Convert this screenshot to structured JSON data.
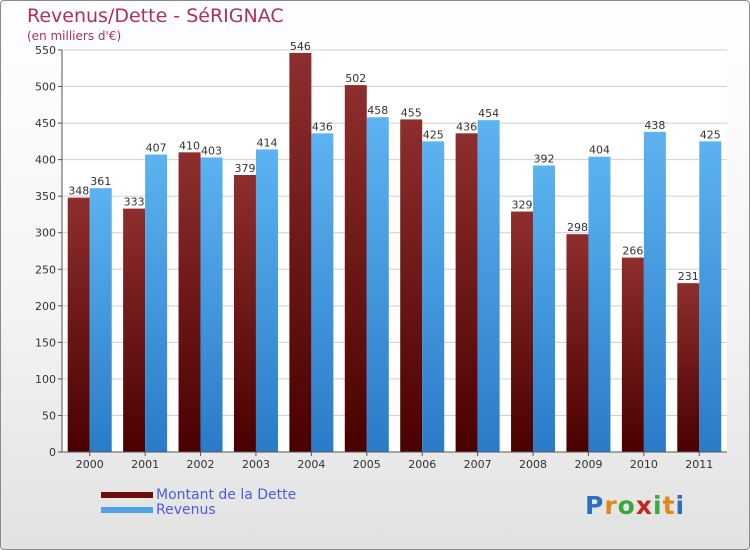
{
  "title": "Revenus/Dette - SéRIGNAC",
  "subtitle": "(en milliers d'€)",
  "colors": {
    "dette": "#7a1c1c",
    "revenus": "#4ea3e6"
  },
  "chart_data": {
    "type": "bar",
    "title": "Revenus/Dette - SéRIGNAC",
    "ylabel": "(en milliers d'€)",
    "categories": [
      "2000",
      "2001",
      "2002",
      "2003",
      "2004",
      "2005",
      "2006",
      "2007",
      "2008",
      "2009",
      "2010",
      "2011"
    ],
    "series": [
      {
        "name": "Montant de la Dette",
        "values": [
          348,
          333,
          410,
          379,
          546,
          502,
          455,
          436,
          329,
          298,
          266,
          231
        ]
      },
      {
        "name": "Revenus",
        "values": [
          361,
          407,
          403,
          414,
          436,
          458,
          425,
          454,
          392,
          404,
          438,
          425
        ]
      }
    ],
    "ylim": [
      0,
      550
    ],
    "yticks": [
      0,
      50,
      100,
      150,
      200,
      250,
      300,
      350,
      400,
      450,
      500,
      550
    ],
    "grid": true,
    "legend": "bottom-left"
  },
  "legend": [
    {
      "label": "Montant de la Dette",
      "color": "#6a0e0e"
    },
    {
      "label": "Revenus",
      "color": "#4ea3e6"
    }
  ],
  "logo": {
    "text": "Proxiti",
    "letters": [
      "P",
      "r",
      "o",
      "x",
      "i",
      "t",
      "i"
    ]
  }
}
